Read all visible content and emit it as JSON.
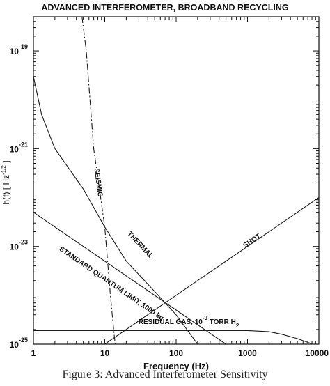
{
  "chart_data": {
    "type": "line",
    "title": "ADVANCED INTERFEROMETER, BROADBAND RECYCLING",
    "xlabel": "Frequency (Hz)",
    "ylabel": "h(f) [ Hz",
    "ylabel_exponent": "-1/2",
    "ylabel_close": " ]",
    "x_scale": "log",
    "y_scale": "log",
    "xlim": [
      1,
      10000
    ],
    "ylim": [
      1e-25,
      5e-19
    ],
    "grid": false,
    "x_ticks": [
      {
        "value": 1,
        "label": "1"
      },
      {
        "value": 10,
        "label": "10"
      },
      {
        "value": 100,
        "label": "100"
      },
      {
        "value": 1000,
        "label": "1000"
      },
      {
        "value": 10000,
        "label": "10000"
      }
    ],
    "y_ticks": [
      {
        "value": 1e-25,
        "base": "10",
        "exponent": "-25"
      },
      {
        "value": 1e-23,
        "base": "10",
        "exponent": "-23"
      },
      {
        "value": 1e-21,
        "base": "10",
        "exponent": "-21"
      },
      {
        "value": 1e-19,
        "base": "10",
        "exponent": "-19"
      }
    ],
    "series": [
      {
        "name": "SEISMIC",
        "style": "dashed",
        "points": [
          [
            4.8,
            5e-19
          ],
          [
            5.5,
            1e-19
          ],
          [
            7.0,
            1e-21
          ],
          [
            10.0,
            2.5e-23
          ],
          [
            12.0,
            1e-24
          ],
          [
            13.5,
            1.6e-25
          ],
          [
            14.0,
            1e-25
          ]
        ]
      },
      {
        "name": "THERMAL",
        "style": "solid",
        "points": [
          [
            1.0,
            3e-20
          ],
          [
            1.3,
            5e-21
          ],
          [
            2.0,
            1e-21
          ],
          [
            5.0,
            1.5e-22
          ],
          [
            10.0,
            2.5e-23
          ],
          [
            20.0,
            5e-24
          ],
          [
            50.0,
            1.2e-24
          ],
          [
            100.0,
            4e-25
          ],
          [
            200.0,
            1e-25
          ]
        ]
      },
      {
        "name": "STANDARD QUANTUM LIMIT, 1000 kg",
        "style": "solid",
        "points": [
          [
            1.0,
            5e-23
          ],
          [
            10.0,
            5e-24
          ],
          [
            100.0,
            5e-25
          ],
          [
            500.0,
            1e-25
          ]
        ]
      },
      {
        "name": "SHOT",
        "style": "solid",
        "points": [
          [
            10.0,
            1e-25
          ],
          [
            100.0,
            1e-24
          ],
          [
            1000.0,
            1e-23
          ],
          [
            10000.0,
            1e-22
          ]
        ]
      },
      {
        "name": "RESIDUAL GAS",
        "style": "solid",
        "points": [
          [
            1.0,
            1.9e-25
          ],
          [
            1000.0,
            1.9e-25
          ],
          [
            2000.0,
            1.8e-25
          ],
          [
            3000.0,
            1.6e-25
          ],
          [
            5000.0,
            1.3e-25
          ],
          [
            7500.0,
            1.05e-25
          ],
          [
            8000.0,
            1e-25
          ]
        ]
      }
    ],
    "annotations": [
      {
        "series": "SEISMIC",
        "text": "SEISMIC",
        "at": [
          7.6,
          2e-22
        ]
      },
      {
        "series": "THERMAL",
        "text": "THERMAL",
        "at": [
          30.0,
          1e-23
        ]
      },
      {
        "series": "STANDARD QUANTUM LIMIT, 1000 kg",
        "text": "STANDARD QUANTUM LIMIT, 1000 kg",
        "at": [
          12.0,
          1.6e-24
        ]
      },
      {
        "series": "SHOT",
        "text": "SHOT",
        "at": [
          1200.0,
          1.2e-23
        ]
      },
      {
        "series": "RESIDUAL GAS",
        "text": "RESIDUAL GAS, 10",
        "sup": "-9",
        "text2": " TORR H",
        "sub": "2",
        "at": [
          150.0,
          2.6e-25
        ]
      }
    ]
  },
  "caption": "Figure 3: Advanced Interferometer Sensitivity"
}
